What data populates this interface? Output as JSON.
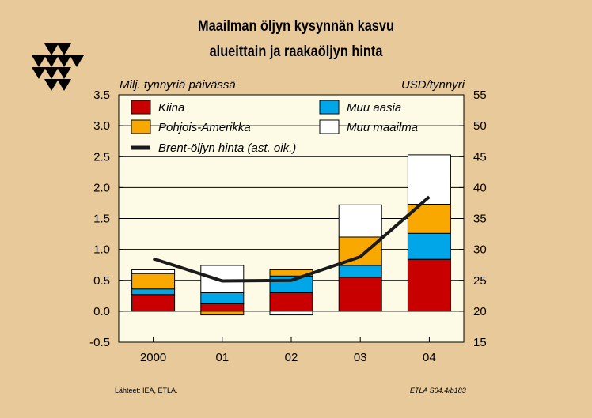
{
  "page": {
    "title_line1": "Maailman öljyn kysynnän kasvu",
    "title_line2": "alueittain ja raakaöljyn hinta",
    "source": "Lähteet:   IEA, ETLA.",
    "code": "ETLA S04.4/b183"
  },
  "colors": {
    "background": "#e8c99a",
    "plot_area": "#fdfbe6",
    "kiina": "#c80000",
    "muu_aasia": "#00a6e8",
    "pohjois_amerikka": "#f9a800",
    "muu_maailma": "#ffffff",
    "brent": "#1a1a1a"
  },
  "chart_data": {
    "type": "bar",
    "stacked": true,
    "ylabel": "Milj. tynnyriä päivässä",
    "y2label": "USD/tynnyri",
    "categories": [
      "2000",
      "01",
      "02",
      "03",
      "04"
    ],
    "ylim": [
      -0.5,
      3.5
    ],
    "y_ticks": [
      "3.5",
      "3.0",
      "2.5",
      "2.0",
      "1.5",
      "1.0",
      "0.5",
      "0.0",
      "-0.5"
    ],
    "y2lim": [
      15,
      55
    ],
    "y2_ticks": [
      "55",
      "50",
      "45",
      "40",
      "35",
      "30",
      "25",
      "20",
      "15"
    ],
    "series": [
      {
        "name": "Kiina",
        "key": "kiina",
        "values": [
          0.27,
          0.12,
          0.3,
          0.55,
          0.84
        ]
      },
      {
        "name": "Muu aasia",
        "key": "muu_aasia",
        "values": [
          0.09,
          0.18,
          0.27,
          0.19,
          0.42
        ]
      },
      {
        "name": "Pohjois-Amerikka",
        "key": "pohjois_amerikka",
        "values": [
          0.25,
          -0.06,
          0.1,
          0.46,
          0.47
        ]
      },
      {
        "name": "Muu maailma",
        "key": "muu_maailma",
        "values": [
          0.06,
          0.44,
          -0.06,
          0.52,
          0.8
        ]
      }
    ],
    "line": {
      "name": "Brent-öljyn hinta (ast. oik.)",
      "key": "brent",
      "axis": "right",
      "values": [
        28.5,
        24.9,
        25.0,
        28.8,
        38.5
      ]
    },
    "legend_position": "top"
  }
}
